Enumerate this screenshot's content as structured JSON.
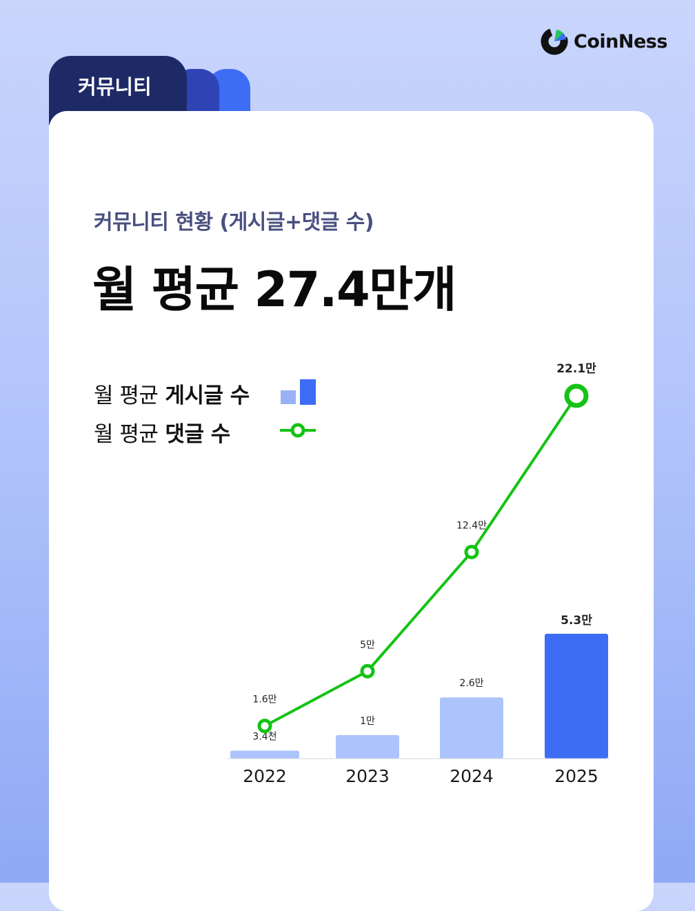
{
  "brand": {
    "name": "CoinNess",
    "colors": {
      "dark": "#111111",
      "green": "#22c55e",
      "blue": "#3d6cf5"
    }
  },
  "tab": {
    "label": "커뮤니티"
  },
  "subtitle": "커뮤니티 현황 (게시글+댓글 수)",
  "headline": "월 평균 27.4만개",
  "legend": {
    "posts": {
      "prefix": "월 평균",
      "bold": "게시글 수"
    },
    "comments": {
      "prefix": "월 평균",
      "bold": "댓글 수"
    }
  },
  "chart_data": {
    "type": "bar+line",
    "categories": [
      "2022",
      "2023",
      "2024",
      "2025"
    ],
    "series": [
      {
        "name": "월 평균 게시글 수",
        "type": "bar",
        "values": [
          3400,
          10000,
          26000,
          53000
        ],
        "labels": [
          "3.4천",
          "1만",
          "2.6만",
          "5.3만"
        ],
        "colors": [
          "#adc3fb",
          "#adc3fb",
          "#adc3fb",
          "#3d6cf5"
        ]
      },
      {
        "name": "월 평균 댓글 수",
        "type": "line",
        "values": [
          16000,
          50000,
          124000,
          221000
        ],
        "labels": [
          "1.6만",
          "5만",
          "12.4만",
          "22.1만"
        ],
        "color": "#14c314"
      }
    ]
  }
}
